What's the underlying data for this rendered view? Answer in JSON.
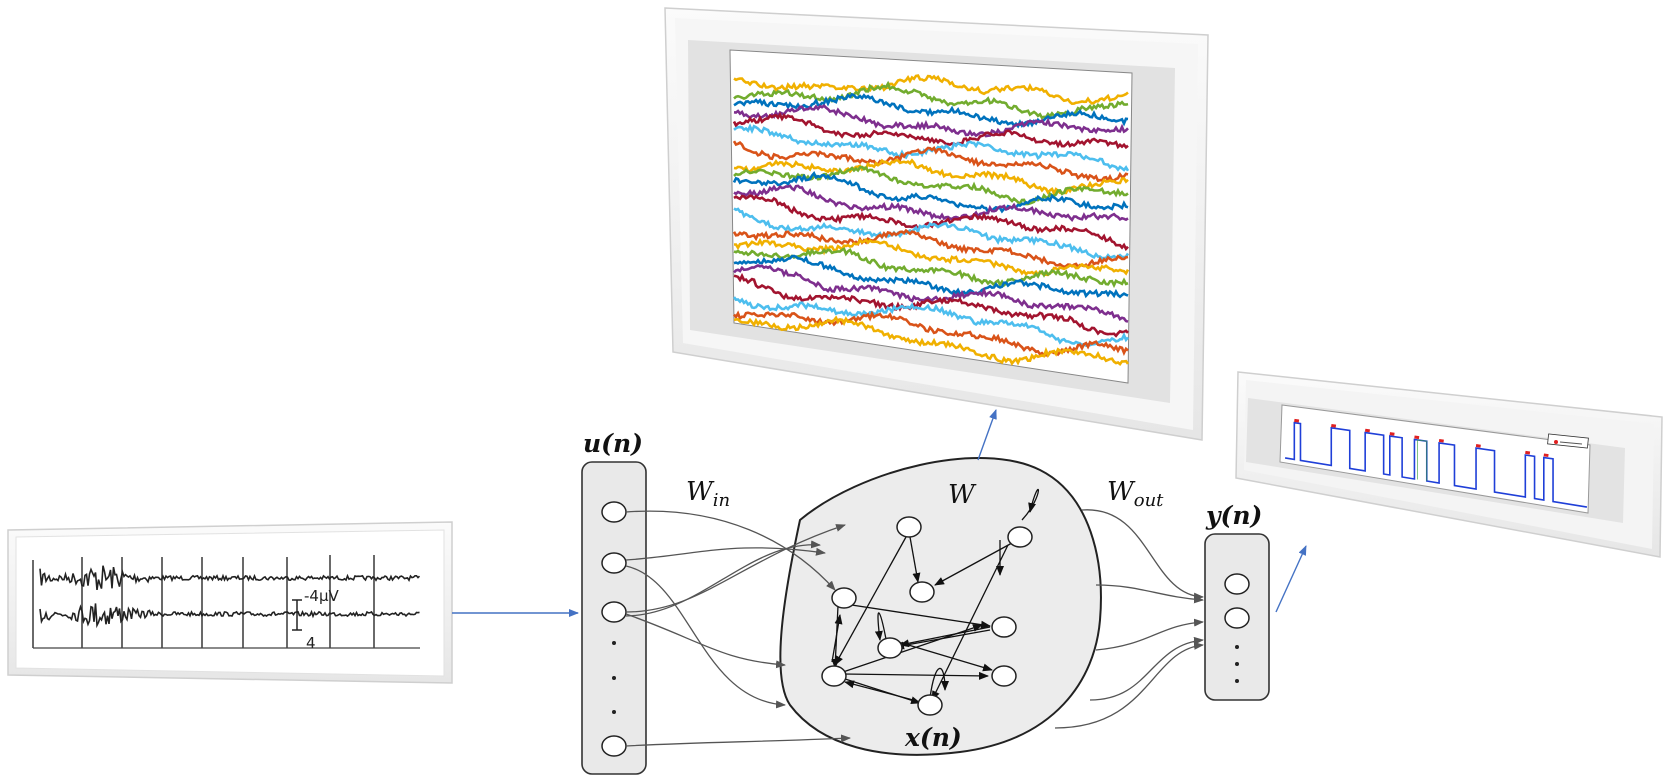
{
  "labels": {
    "input_vector": "u(n)",
    "input_weights": "W",
    "input_weights_sub": "in",
    "reservoir_weights": "W",
    "output_weights": "W",
    "output_weights_sub": "out",
    "output_vector": "y(n)",
    "reservoir_state": "x(n)"
  },
  "eeg_panel": {
    "scale_label": "-4μV",
    "scale_tick": "4"
  },
  "colors": {
    "series": [
      "#f0b000",
      "#72ac2f",
      "#0072bd",
      "#7e2f8e",
      "#a2142f",
      "#4dbeee",
      "#d95319"
    ],
    "arrow_blue": "#4472c4",
    "reservoir_fill": "#ececec",
    "output_plot_blue": "#1f3fd8",
    "output_plot_red": "#e02020"
  }
}
